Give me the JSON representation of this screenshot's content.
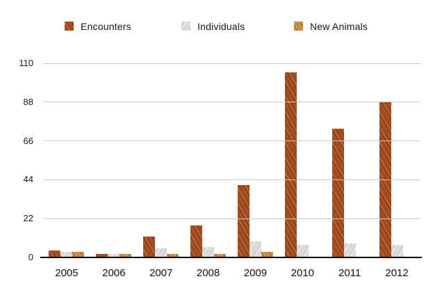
{
  "chart_data": {
    "type": "bar",
    "title": "",
    "categories": [
      "2005",
      "2006",
      "2007",
      "2008",
      "2009",
      "2010",
      "2011",
      "2012"
    ],
    "series": [
      {
        "name": "Encounters",
        "color": "#9c4a1d",
        "values": [
          4,
          2,
          12,
          18,
          41,
          105,
          73,
          88
        ]
      },
      {
        "name": "Individuals",
        "color": "#d6d6d2",
        "values": [
          3,
          2,
          5,
          6,
          9,
          7,
          8,
          7
        ]
      },
      {
        "name": "New Animals",
        "color": "#c5863b",
        "values": [
          3,
          2,
          2,
          2,
          3,
          0,
          0,
          0
        ]
      }
    ],
    "xlabel": "",
    "ylabel": "",
    "ylim": [
      0,
      110
    ],
    "yticks": [
      0,
      22,
      44,
      66,
      88,
      110
    ],
    "grid": true,
    "grid_color": "#c9c9c9",
    "axis_color": "#000000",
    "legend_position": "top"
  }
}
